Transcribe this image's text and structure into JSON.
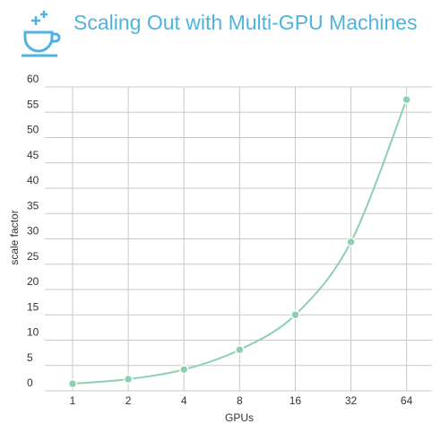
{
  "chart_data": {
    "type": "line",
    "title": "Scaling Out with Multi-GPU Machines",
    "x_label": "GPUs",
    "y_label": "scale factor",
    "categories": [
      "1",
      "2",
      "4",
      "8",
      "16",
      "32",
      "64"
    ],
    "series": [
      {
        "name": "scale factor",
        "color": "#8ecfae",
        "values": [
          1.4,
          2.3,
          4.2,
          8.1,
          15,
          29.4,
          57.5
        ]
      }
    ],
    "ylim": [
      0,
      60
    ],
    "yticks": [
      0,
      5,
      10,
      15,
      20,
      25,
      30,
      35,
      40,
      45,
      50,
      55,
      60
    ],
    "grid": true
  }
}
